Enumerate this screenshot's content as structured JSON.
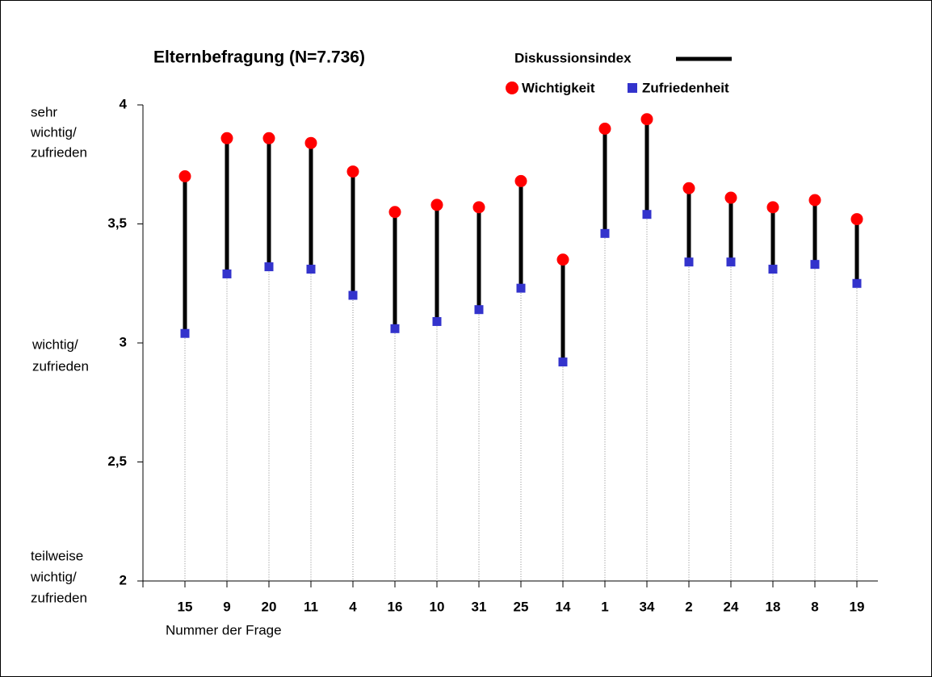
{
  "chart_data": {
    "type": "dumbbell",
    "title": "Elternbefragung (N=7.736)",
    "x_label": "Nummer der Frage",
    "categories": [
      "15",
      "9",
      "20",
      "11",
      "4",
      "16",
      "10",
      "31",
      "25",
      "14",
      "1",
      "34",
      "2",
      "24",
      "18",
      "8",
      "19"
    ],
    "range_line": {
      "name": "Diskussionsindex",
      "color": "#000000"
    },
    "series": [
      {
        "name": "Wichtigkeit",
        "color": "#ff0000",
        "marker": "circle",
        "values": [
          3.7,
          3.86,
          3.86,
          3.84,
          3.72,
          3.55,
          3.58,
          3.57,
          3.68,
          3.35,
          3.9,
          3.94,
          3.65,
          3.61,
          3.57,
          3.6,
          3.52
        ]
      },
      {
        "name": "Zufriedenheit",
        "color": "#3333cc",
        "marker": "square",
        "values": [
          3.04,
          3.29,
          3.32,
          3.31,
          3.2,
          3.06,
          3.09,
          3.14,
          3.23,
          2.92,
          3.46,
          3.54,
          3.34,
          3.34,
          3.31,
          3.33,
          3.25
        ]
      }
    ],
    "ylim": [
      2,
      4
    ],
    "yticks": [
      2,
      {
        "value": 2.5,
        "label": "2,5"
      },
      3,
      {
        "value": 3.5,
        "label": "3,5"
      },
      4
    ],
    "y_annotations": [
      [
        "sehr",
        "wichtig/",
        "zufrieden"
      ],
      [
        "wichtig/",
        "zufrieden"
      ],
      [
        "teilweise",
        "wichtig/",
        "zufrieden"
      ]
    ]
  }
}
